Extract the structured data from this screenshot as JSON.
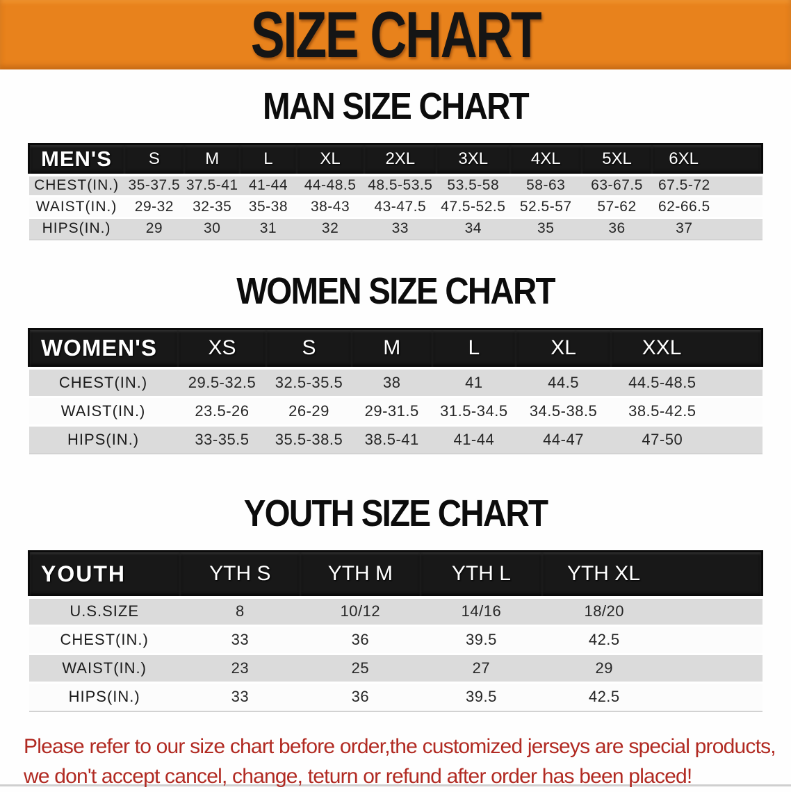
{
  "banner": {
    "title": "SIZE CHART"
  },
  "sections": [
    {
      "heading": "MAN SIZE CHART",
      "table": {
        "group_label": "MEN'S",
        "sizes": [
          "S",
          "M",
          "L",
          "XL",
          "2XL",
          "3XL",
          "4XL",
          "5XL",
          "6XL"
        ],
        "rows": [
          {
            "label": "CHEST(IN.)",
            "values": [
              "35-37.5",
              "37.5-41",
              "41-44",
              "44-48.5",
              "48.5-53.5",
              "53.5-58",
              "58-63",
              "63-67.5",
              "67.5-72"
            ]
          },
          {
            "label": "WAIST(IN.)",
            "values": [
              "29-32",
              "32-35",
              "35-38",
              "38-43",
              "43-47.5",
              "47.5-52.5",
              "52.5-57",
              "57-62",
              "62-66.5"
            ]
          },
          {
            "label": "HIPS(IN.)",
            "values": [
              "29",
              "30",
              "31",
              "32",
              "33",
              "34",
              "35",
              "36",
              "37"
            ]
          }
        ]
      }
    },
    {
      "heading": "WOMEN SIZE CHART",
      "table": {
        "group_label": "WOMEN'S",
        "sizes": [
          "XS",
          "S",
          "M",
          "L",
          "XL",
          "XXL"
        ],
        "rows": [
          {
            "label": "CHEST(IN.)",
            "values": [
              "29.5-32.5",
              "32.5-35.5",
              "38",
              "41",
              "44.5",
              "44.5-48.5"
            ]
          },
          {
            "label": "WAIST(IN.)",
            "values": [
              "23.5-26",
              "26-29",
              "29-31.5",
              "31.5-34.5",
              "34.5-38.5",
              "38.5-42.5"
            ]
          },
          {
            "label": "HIPS(IN.)",
            "values": [
              "33-35.5",
              "35.5-38.5",
              "38.5-41",
              "41-44",
              "44-47",
              "47-50"
            ]
          }
        ]
      }
    },
    {
      "heading": "YOUTH SIZE CHART",
      "table": {
        "group_label": "YOUTH",
        "sizes": [
          "YTH S",
          "YTH M",
          "YTH L",
          "YTH XL"
        ],
        "rows": [
          {
            "label": "U.S.SIZE",
            "values": [
              "8",
              "10/12",
              "14/16",
              "18/20"
            ]
          },
          {
            "label": "CHEST(IN.)",
            "values": [
              "33",
              "36",
              "39.5",
              "42.5"
            ]
          },
          {
            "label": "WAIST(IN.)",
            "values": [
              "23",
              "25",
              "27",
              "29"
            ]
          },
          {
            "label": "HIPS(IN.)",
            "values": [
              "33",
              "36",
              "39.5",
              "42.5"
            ]
          }
        ]
      }
    }
  ],
  "footer": {
    "line1": "Please refer to our size chart before order,the customized jerseys are special products,",
    "line2": "we don't accept cancel, change, teturn or refund after order has been placed!"
  },
  "colors": {
    "banner_bg": "#e8821c",
    "banner_text": "#151515",
    "header_row_bg": "#181818",
    "stripe_gray": "#dbdbdb",
    "note_red": "#b12a22"
  }
}
